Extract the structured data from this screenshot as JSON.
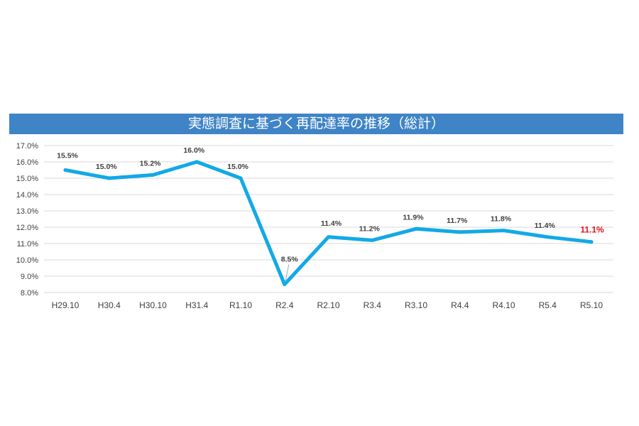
{
  "chart_data": {
    "type": "line",
    "title": "実態調査に基づく再配達率の推移（総計）",
    "xlabel": "",
    "ylabel": "",
    "categories": [
      "H29.10",
      "H30.4",
      "H30.10",
      "H31.4",
      "R1.10",
      "R2.4",
      "R2.10",
      "R3.4",
      "R3.10",
      "R4.4",
      "R4.10",
      "R5.4",
      "R5.10"
    ],
    "values": [
      15.5,
      15.0,
      15.2,
      16.0,
      15.0,
      8.5,
      11.4,
      11.2,
      11.9,
      11.7,
      11.8,
      11.4,
      11.1
    ],
    "data_labels": [
      "15.5%",
      "15.0%",
      "15.2%",
      "16.0%",
      "15.0%",
      "8.5%",
      "11.4%",
      "11.2%",
      "11.9%",
      "11.7%",
      "11.8%",
      "11.4%",
      "11.1%"
    ],
    "ylim": [
      8.0,
      17.0
    ],
    "yticks": [
      "8.0%",
      "9.0%",
      "10.0%",
      "11.0%",
      "12.0%",
      "13.0%",
      "14.0%",
      "15.0%",
      "16.0%",
      "17.0%"
    ],
    "grid": true,
    "legend": "none",
    "colors": {
      "line": "#12a9e6",
      "title_bar": "#3f84c6",
      "highlight_label": "#e0131b",
      "label": "#404040",
      "grid": "#d9d9d9"
    }
  }
}
